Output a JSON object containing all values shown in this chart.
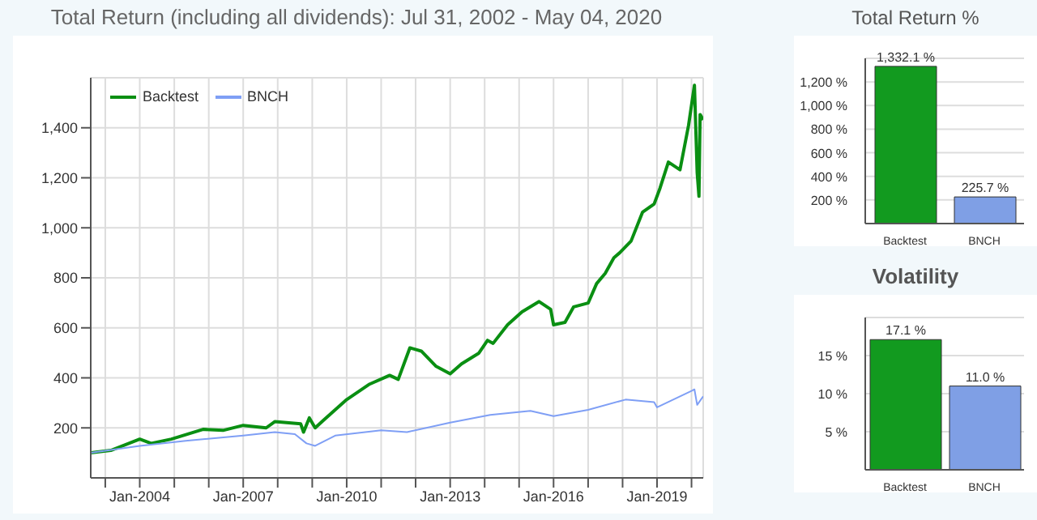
{
  "chart_data": [
    {
      "type": "line",
      "title": "Total Return (including all dividends): Jul 31, 2002 - May 04, 2020",
      "legend": "top left",
      "grid": true,
      "marker": "none",
      "line_style": "solid",
      "xlim": [
        "2002-07-31",
        "2020-05-04"
      ],
      "xticks": [
        {
          "value": "2003-01",
          "label": null
        },
        {
          "value": "2004-01",
          "label": "Jan-2004"
        },
        {
          "value": "2005-01",
          "label": null
        },
        {
          "value": "2006-01",
          "label": null
        },
        {
          "value": "2007-01",
          "label": "Jan-2007"
        },
        {
          "value": "2008-01",
          "label": null
        },
        {
          "value": "2009-01",
          "label": null
        },
        {
          "value": "2010-01",
          "label": "Jan-2010"
        },
        {
          "value": "2011-01",
          "label": null
        },
        {
          "value": "2012-01",
          "label": null
        },
        {
          "value": "2013-01",
          "label": "Jan-2013"
        },
        {
          "value": "2014-01",
          "label": null
        },
        {
          "value": "2015-01",
          "label": null
        },
        {
          "value": "2016-01",
          "label": "Jan-2016"
        },
        {
          "value": "2017-01",
          "label": null
        },
        {
          "value": "2018-01",
          "label": null
        },
        {
          "value": "2019-01",
          "label": "Jan-2019"
        },
        {
          "value": "2020-01",
          "label": null
        }
      ],
      "ylim": [
        0,
        1600
      ],
      "yticks": [
        200,
        400,
        600,
        800,
        {
          "value": 1000,
          "label": "1,000"
        },
        {
          "value": 1200,
          "label": "1,200"
        },
        {
          "value": 1400,
          "label": "1,400"
        }
      ],
      "series": [
        {
          "name": "Backtest",
          "color": "#0a8f12",
          "x": [
            "2002-07-31",
            "2003-03",
            "2004-01",
            "2004-05",
            "2004-12",
            "2005-11",
            "2006-06",
            "2007-01",
            "2007-09",
            "2007-12",
            "2008-09",
            "2008-10",
            "2008-12",
            "2009-02",
            "2009-05",
            "2010-01",
            "2010-09",
            "2011-04",
            "2011-07",
            "2011-11",
            "2012-03",
            "2012-08",
            "2013-01",
            "2013-05",
            "2013-11",
            "2014-02",
            "2014-04",
            "2014-09",
            "2015-02",
            "2015-08",
            "2015-12",
            "2016-01",
            "2016-05",
            "2016-08",
            "2017-01",
            "2017-04",
            "2017-07",
            "2017-10",
            "2017-12",
            "2018-04",
            "2018-08",
            "2018-12",
            "2019-02",
            "2019-05",
            "2019-09",
            "2019-12",
            "2020-02",
            "2020-03",
            "2020-03-20",
            "2020-04",
            "2020-05-04"
          ],
          "values": [
            100,
            110,
            155,
            138,
            155,
            194,
            190,
            210,
            200,
            225,
            216,
            183,
            240,
            200,
            231,
            313,
            375,
            410,
            394,
            520,
            507,
            447,
            416,
            456,
            499,
            550,
            538,
            612,
            664,
            705,
            674,
            612,
            622,
            684,
            699,
            777,
            818,
            880,
            900,
            947,
            1063,
            1095,
            1158,
            1263,
            1232,
            1410,
            1570,
            1221,
            1126,
            1453,
            1432
          ]
        },
        {
          "name": "BNCH",
          "color": "#7f9ff5",
          "x": [
            "2002-07-31",
            "2004-01",
            "2005-05",
            "2007-01",
            "2007-12",
            "2008-07",
            "2008-11",
            "2009-02",
            "2009-09",
            "2011-01",
            "2011-10",
            "2013-01",
            "2014-03",
            "2015-05",
            "2016-01",
            "2017-01",
            "2018-02",
            "2018-12",
            "2019-01",
            "2020-01",
            "2020-02",
            "2020-03",
            "2020-05-04"
          ],
          "values": [
            100,
            128,
            148,
            169,
            183,
            175,
            138,
            128,
            169,
            190,
            183,
            221,
            252,
            268,
            247,
            272,
            313,
            303,
            282,
            348,
            354,
            292,
            326
          ]
        }
      ]
    },
    {
      "type": "bar",
      "title": "Total Return %",
      "categories": [
        "Backtest",
        "BNCH"
      ],
      "values": [
        1332.1,
        225.7
      ],
      "colors": [
        "#129a1f",
        "#7f9fe5"
      ],
      "value_labels": [
        "1,332.1 %",
        "225.7 %"
      ],
      "ylim": [
        0,
        1400
      ],
      "yticks": [
        {
          "value": 200,
          "label": "200 %"
        },
        {
          "value": 400,
          "label": "400 %"
        },
        {
          "value": 600,
          "label": "600 %"
        },
        {
          "value": 800,
          "label": "800 %"
        },
        {
          "value": 1000,
          "label": "1,000 %"
        },
        {
          "value": 1200,
          "label": "1,200 %"
        }
      ],
      "grid": "y"
    },
    {
      "type": "bar",
      "title": "Volatility",
      "categories": [
        "Backtest",
        "BNCH"
      ],
      "values": [
        17.1,
        11.0
      ],
      "colors": [
        "#129a1f",
        "#7f9fe5"
      ],
      "value_labels": [
        "17.1 %",
        "11.0 %"
      ],
      "ylim": [
        0,
        20
      ],
      "yticks": [
        {
          "value": 5,
          "label": "5 %"
        },
        {
          "value": 10,
          "label": "10 %"
        },
        {
          "value": 15,
          "label": "15 %"
        }
      ],
      "grid": "y"
    }
  ]
}
